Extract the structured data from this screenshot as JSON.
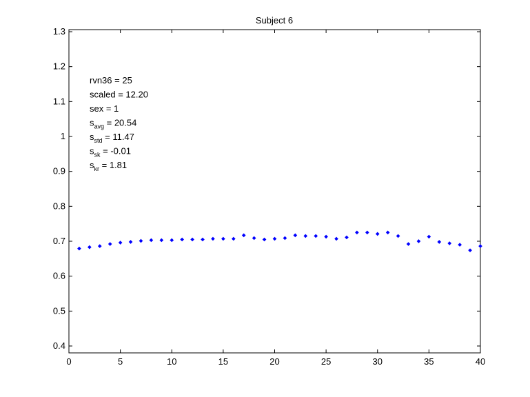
{
  "chart_data": {
    "type": "scatter",
    "title": "Subject 6",
    "xlabel": "",
    "ylabel": "",
    "xlim": [
      0,
      40
    ],
    "ylim": [
      0.38,
      1.31
    ],
    "grid": false,
    "marker_color": "#0000ff",
    "x_ticks": [
      {
        "value": 0,
        "label": "0"
      },
      {
        "value": 5,
        "label": "5"
      },
      {
        "value": 10,
        "label": "10"
      },
      {
        "value": 15,
        "label": "15"
      },
      {
        "value": 20,
        "label": "20"
      },
      {
        "value": 25,
        "label": "25"
      },
      {
        "value": 30,
        "label": "30"
      },
      {
        "value": 35,
        "label": "35"
      },
      {
        "value": 40,
        "label": "40"
      }
    ],
    "y_ticks": [
      {
        "value": 0.4,
        "label": "0.4"
      },
      {
        "value": 0.5,
        "label": "0.5"
      },
      {
        "value": 0.6,
        "label": "0.6"
      },
      {
        "value": 0.7,
        "label": "0.7"
      },
      {
        "value": 0.8,
        "label": "0.8"
      },
      {
        "value": 0.9,
        "label": "0.9"
      },
      {
        "value": 1.0,
        "label": "1"
      },
      {
        "value": 1.1,
        "label": "1.1"
      },
      {
        "value": 1.2,
        "label": "1.2"
      },
      {
        "value": 1.3,
        "label": "1.3"
      }
    ],
    "x": [
      1,
      2,
      3,
      4,
      5,
      6,
      7,
      8,
      9,
      10,
      11,
      12,
      13,
      14,
      15,
      16,
      17,
      18,
      19,
      20,
      21,
      22,
      23,
      24,
      25,
      26,
      27,
      28,
      29,
      30,
      31,
      32,
      33,
      34,
      35,
      36,
      37,
      38,
      39,
      40
    ],
    "y": [
      0.679,
      0.683,
      0.686,
      0.692,
      0.696,
      0.698,
      0.701,
      0.703,
      0.703,
      0.703,
      0.705,
      0.705,
      0.705,
      0.707,
      0.707,
      0.707,
      0.717,
      0.709,
      0.705,
      0.707,
      0.709,
      0.717,
      0.715,
      0.715,
      0.713,
      0.707,
      0.711,
      0.725,
      0.725,
      0.721,
      0.725,
      0.715,
      0.692,
      0.7,
      0.713,
      0.698,
      0.694,
      0.69,
      0.674,
      0.686
    ],
    "annotations": [
      {
        "label": "rvn36 = 25"
      },
      {
        "label": "scaled = 12.20"
      },
      {
        "label": "sex   = 1"
      },
      {
        "label": "s",
        "sub": "avg",
        "value": " = 20.54"
      },
      {
        "label": "s",
        "sub": "std",
        "value": " = 11.47"
      },
      {
        "label": "s",
        "sub": "sk",
        "value": " = -0.01"
      },
      {
        "label": "s",
        "sub": "kr",
        "value": " = 1.81"
      }
    ]
  }
}
